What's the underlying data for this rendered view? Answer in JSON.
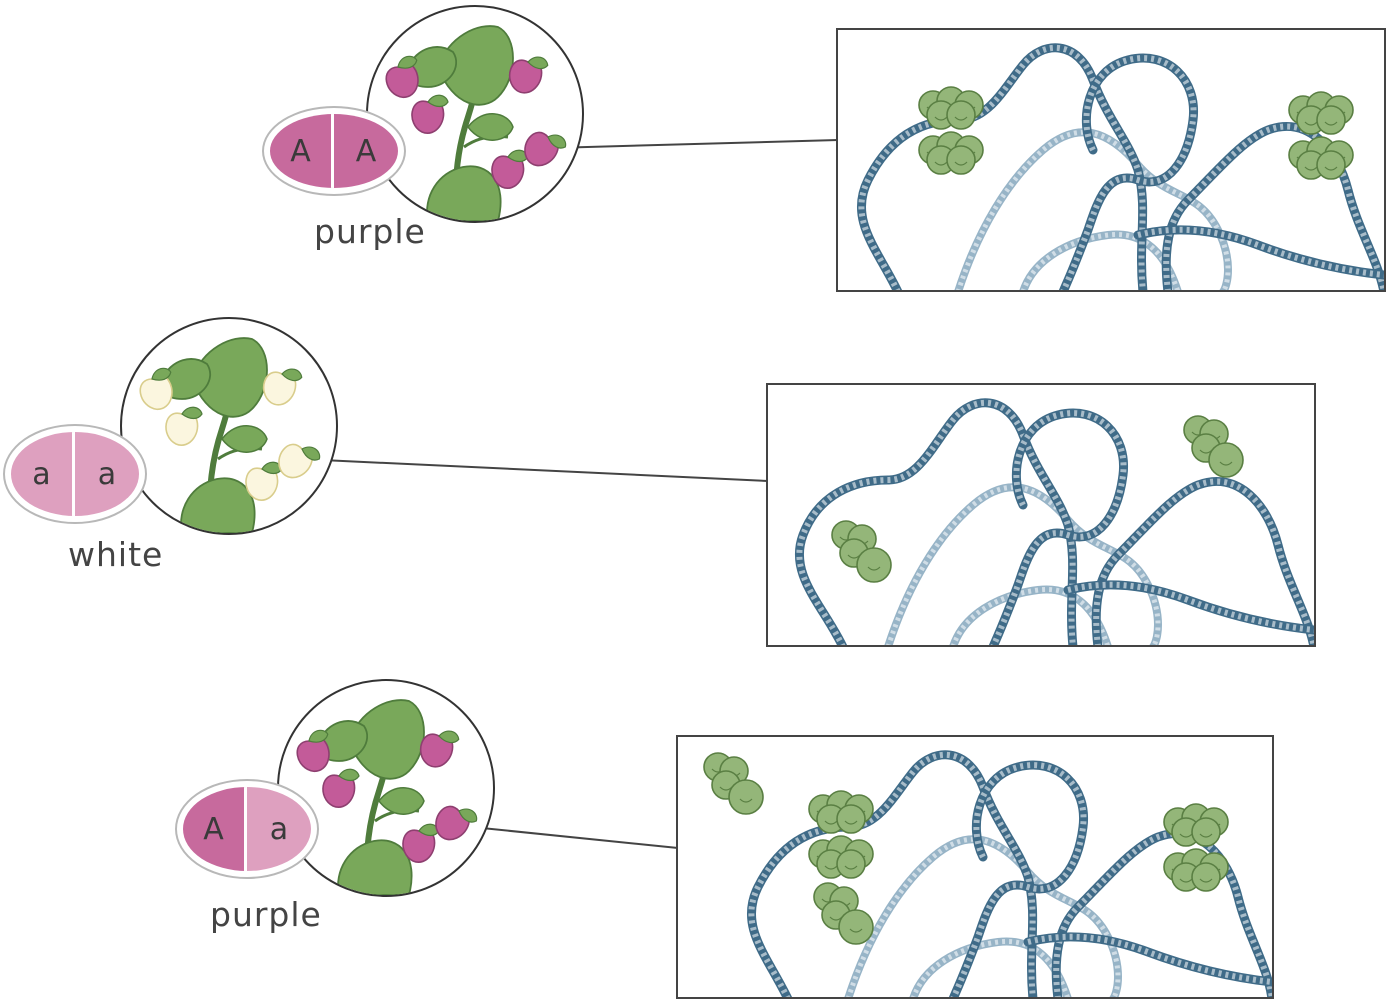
{
  "colors": {
    "dominant": "#c76a9d",
    "recessive": "#dea0bf",
    "purple_flower": "#c35b99",
    "white_flower": "#fbf6df",
    "leaf": "#79a85a",
    "leaf_dark": "#4f7c3c",
    "dna_dark": "#3f6b88",
    "dna_light": "#97b4c7",
    "protein": "#94b679",
    "protein_edge": "#5a7f43"
  },
  "rows": [
    {
      "allele_left": "A",
      "allele_right": "A",
      "phenotype": "purple",
      "flower": "purple"
    },
    {
      "allele_left": "a",
      "allele_right": "a",
      "phenotype": "white",
      "flower": "white"
    },
    {
      "allele_left": "A",
      "allele_right": "a",
      "phenotype": "purple",
      "flower": "purple"
    }
  ]
}
